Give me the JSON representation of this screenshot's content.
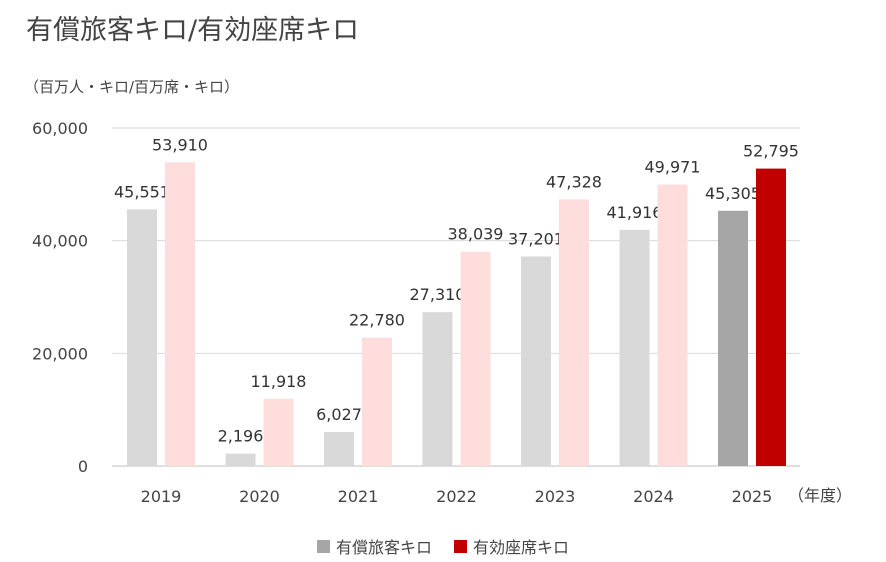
{
  "title": "有償旅客キロ/有効座席キロ",
  "unit_label": "（百万人・キロ/百万席・キロ）",
  "chart_data": {
    "type": "bar",
    "categories": [
      "2019",
      "2020",
      "2021",
      "2022",
      "2023",
      "2024",
      "2025"
    ],
    "x_unit_label": "（年度）",
    "ylim": [
      0,
      60000
    ],
    "yticks": [
      0,
      20000,
      40000,
      60000
    ],
    "ytick_labels": [
      "0",
      "20,000",
      "40,000",
      "60,000"
    ],
    "grid": true,
    "legend_position": "bottom",
    "series": [
      {
        "name": "有償旅客キロ",
        "values": [
          45551,
          2196,
          6027,
          27310,
          37201,
          41916,
          45305
        ],
        "labels": [
          "45,551",
          "2,196",
          "6,027",
          "27,310",
          "37,201",
          "41,916",
          "45,305"
        ],
        "color": "#d9d9d9",
        "highlight_color": "#a6a6a6"
      },
      {
        "name": "有効座席キロ",
        "values": [
          53910,
          11918,
          22780,
          38039,
          47328,
          49971,
          52795
        ],
        "labels": [
          "53,910",
          "11,918",
          "22,780",
          "38,039",
          "47,328",
          "49,971",
          "52,795"
        ],
        "color": "#ffdddd",
        "highlight_color": "#c00000"
      }
    ],
    "highlight_category": "2025"
  }
}
